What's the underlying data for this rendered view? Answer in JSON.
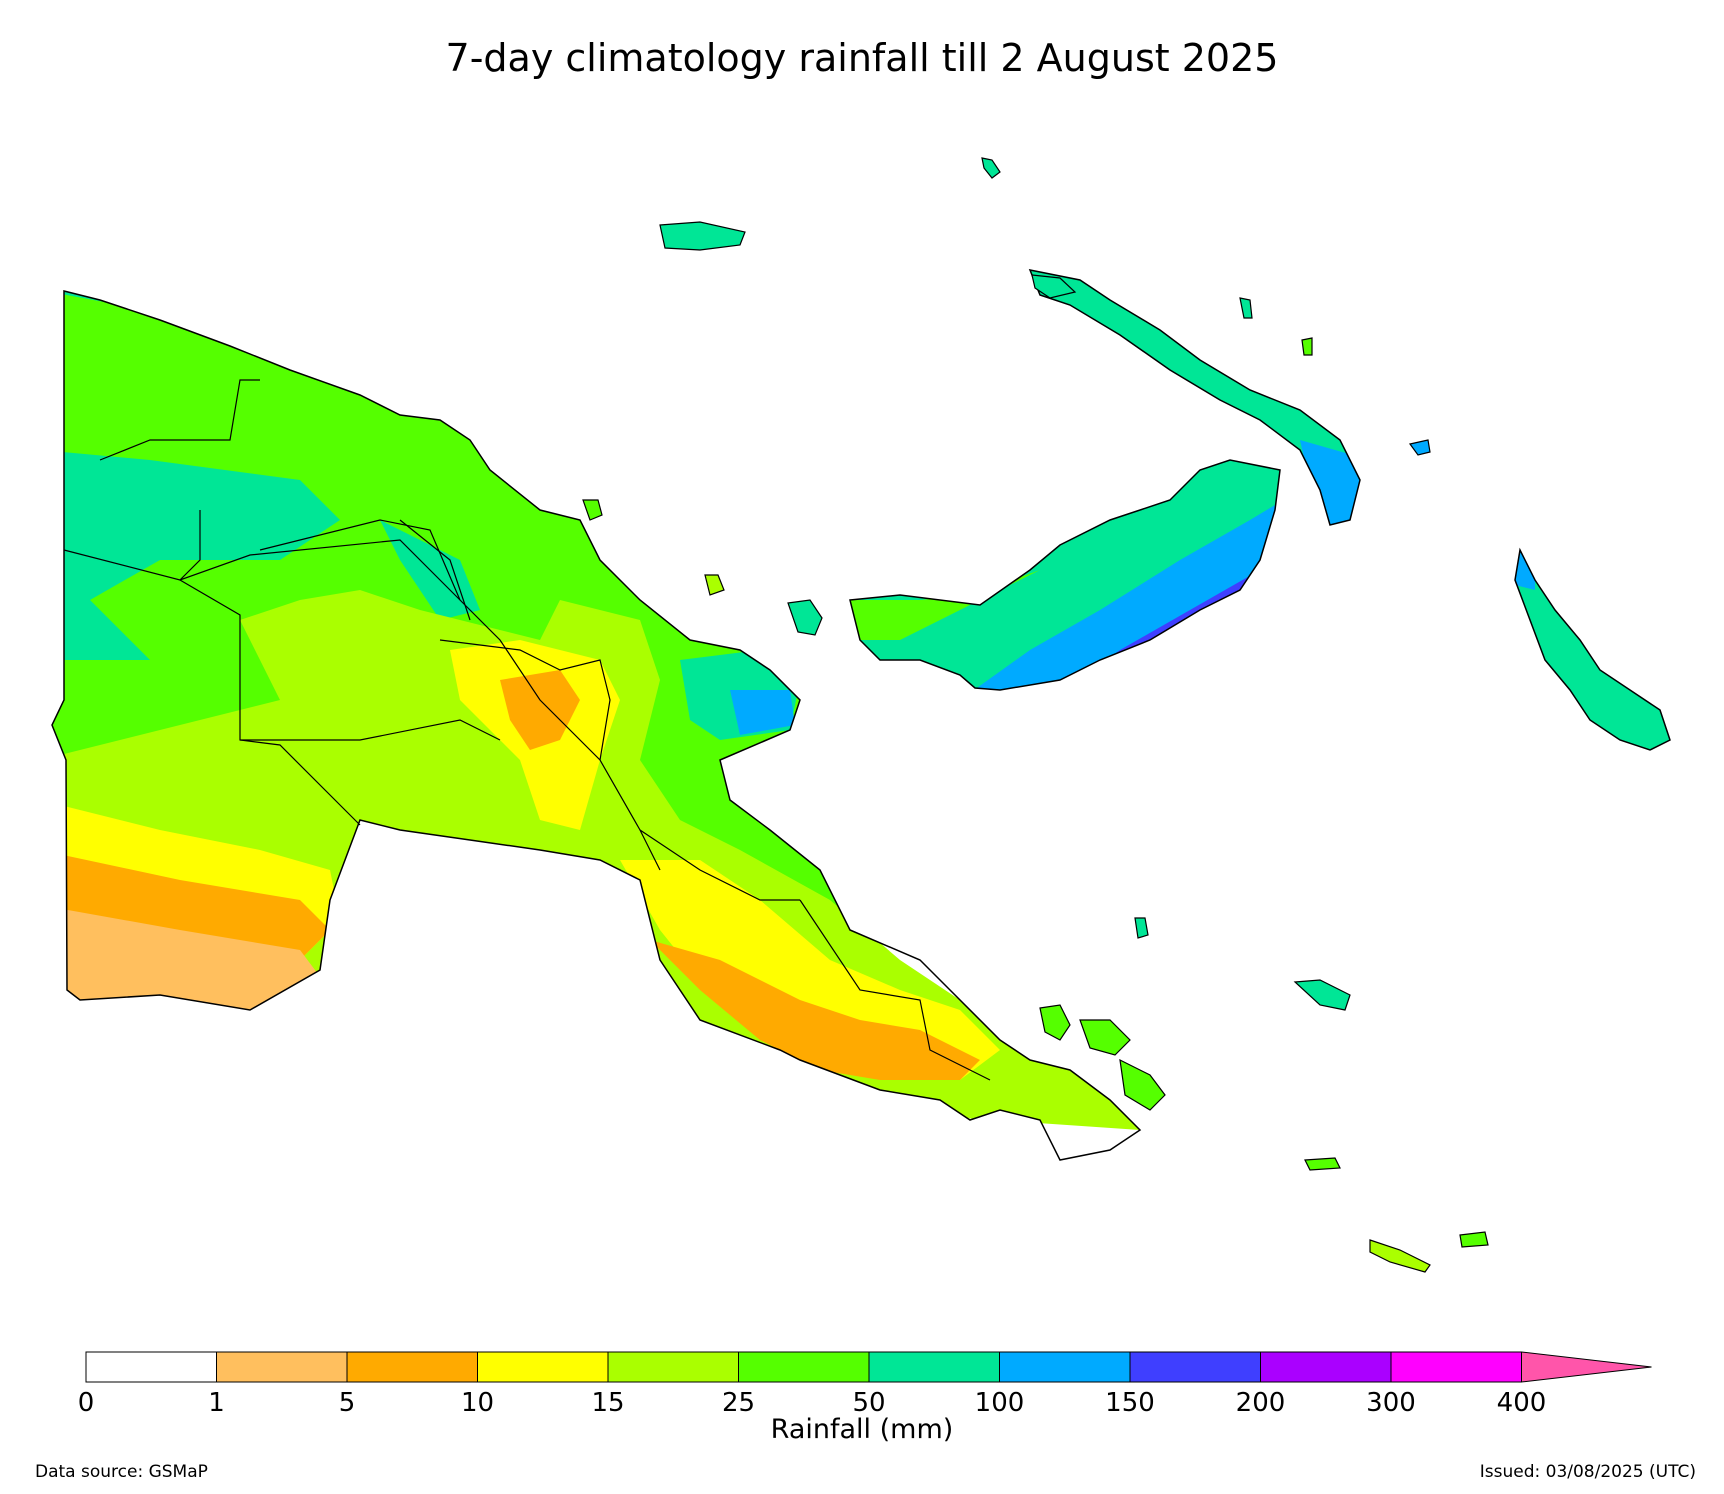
{
  "title": "7-day climatology rainfall till 2 August 2025",
  "legend": {
    "title": "Rainfall (mm)",
    "bins": [
      {
        "label": "0",
        "color": "#ffffff"
      },
      {
        "label": "1",
        "color": "#ffbf5e"
      },
      {
        "label": "5",
        "color": "#ffaa00"
      },
      {
        "label": "10",
        "color": "#ffff00"
      },
      {
        "label": "15",
        "color": "#aaff00"
      },
      {
        "label": "25",
        "color": "#55ff00"
      },
      {
        "label": "50",
        "color": "#00e696"
      },
      {
        "label": "100",
        "color": "#00aaff"
      },
      {
        "label": "150",
        "color": "#3f3fff"
      },
      {
        "label": "200",
        "color": "#aa00ff"
      },
      {
        "label": "300",
        "color": "#ff00ff"
      },
      {
        "label": "400",
        "color": "#ff55aa"
      }
    ]
  },
  "footer": {
    "source": "Data source: GSMaP",
    "issued": "Issued: 03/08/2025 (UTC)"
  }
}
